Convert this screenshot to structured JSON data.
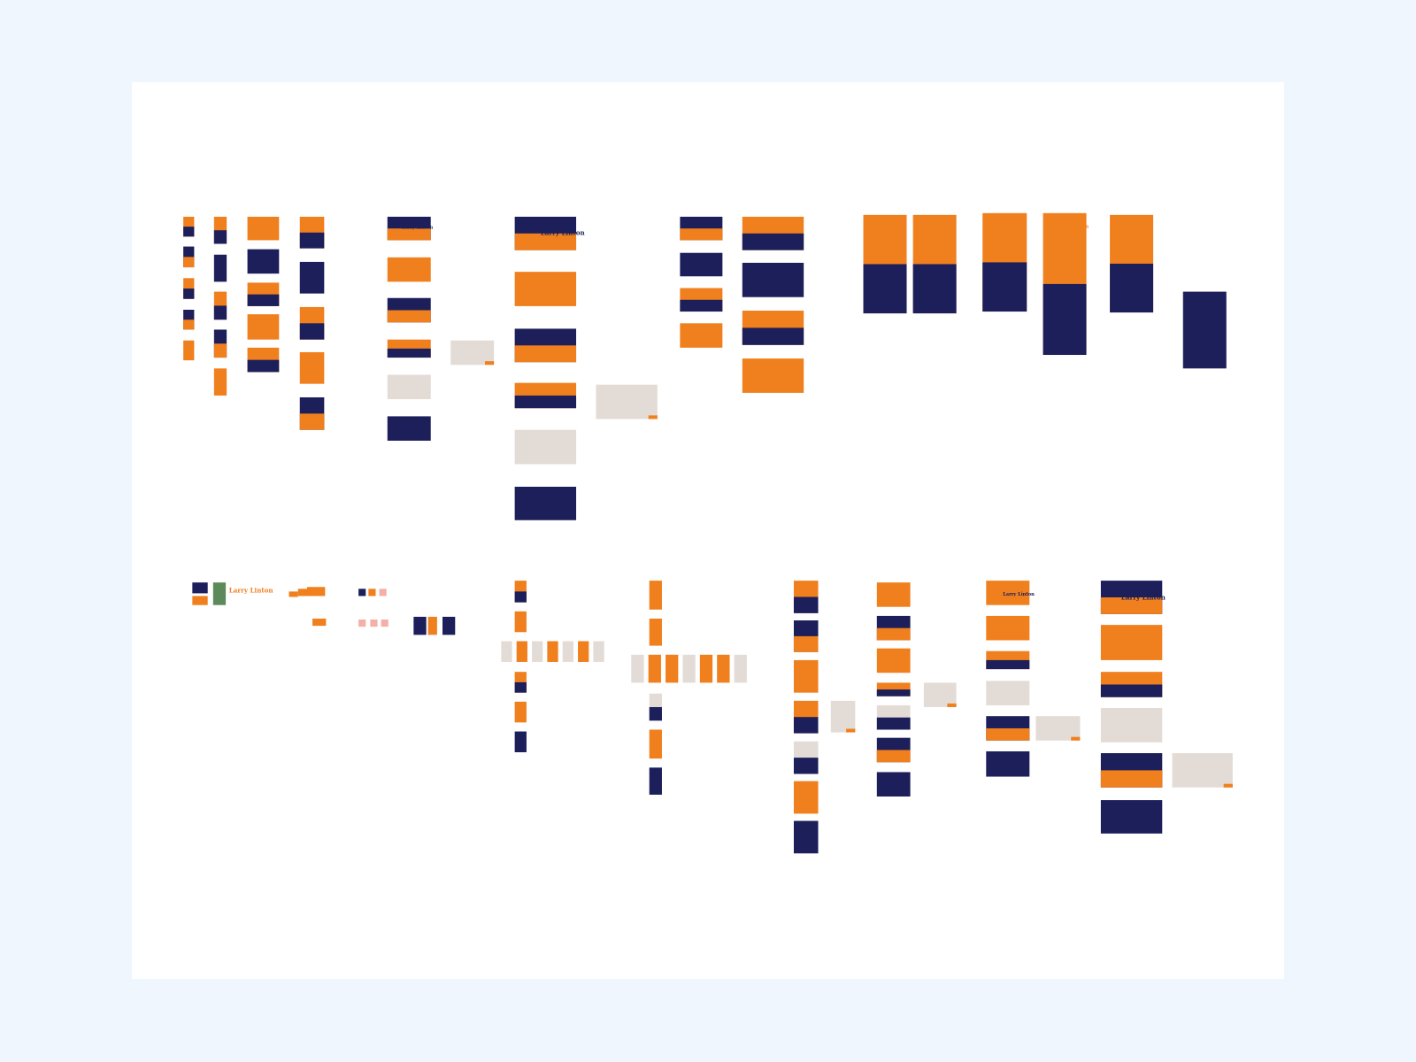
{
  "canvas": {
    "hero_titles": [
      "Larry Linton",
      "Larry Linton",
      "Larry Linton",
      "Larry Linton",
      "Larry Linton",
      "Larry Linton"
    ]
  }
}
